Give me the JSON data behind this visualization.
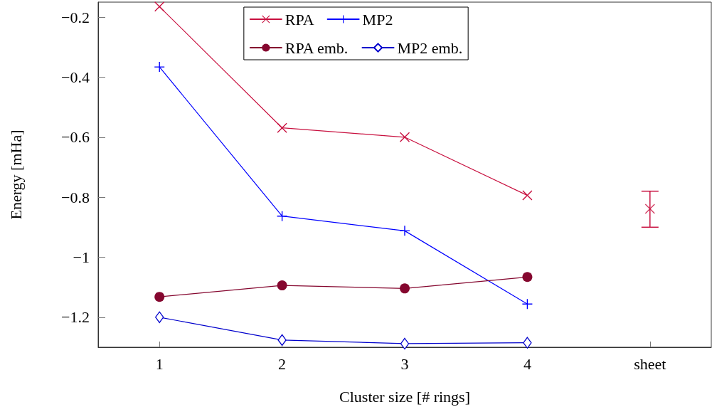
{
  "chart_data": {
    "type": "line",
    "xlabel": "Cluster size [# rings]",
    "ylabel": "Energy [mHa]",
    "categories": [
      "1",
      "2",
      "3",
      "4",
      "sheet"
    ],
    "series": [
      {
        "name": "RPA",
        "color": "#c8103f",
        "marker": "cross",
        "values": [
          -0.165,
          -0.569,
          -0.6,
          -0.794,
          null
        ]
      },
      {
        "name": "MP2",
        "color": "#0000ff",
        "marker": "plus",
        "values": [
          -0.366,
          -0.863,
          -0.912,
          -1.156,
          null
        ]
      },
      {
        "name": "RPA emb.",
        "color": "#85072f",
        "marker": "circle",
        "values": [
          -1.132,
          -1.094,
          -1.104,
          -1.066,
          null
        ]
      },
      {
        "name": "MP2 emb.",
        "color": "#0000cc",
        "marker": "diamond",
        "values": [
          -1.2,
          -1.276,
          -1.288,
          -1.285,
          null
        ]
      },
      {
        "type": "scatter",
        "color": "#c8103f",
        "marker": "cross",
        "values": [
          null,
          null,
          null,
          null,
          -0.839
        ],
        "errors": [
          null,
          null,
          null,
          null,
          [
            -0.9,
            -0.78
          ]
        ]
      }
    ],
    "ylim": [
      -1.3,
      -0.15
    ],
    "yticks": [
      {
        "value": -1.2,
        "label": "−1.2"
      },
      {
        "value": -1,
        "label": "−1"
      },
      {
        "value": -0.8,
        "label": "−0.8"
      },
      {
        "value": -0.6,
        "label": "−0.6"
      },
      {
        "value": -0.4,
        "label": "−0.4"
      },
      {
        "value": -0.2,
        "label": "−0.2"
      }
    ],
    "grid": false,
    "legend": "top"
  }
}
